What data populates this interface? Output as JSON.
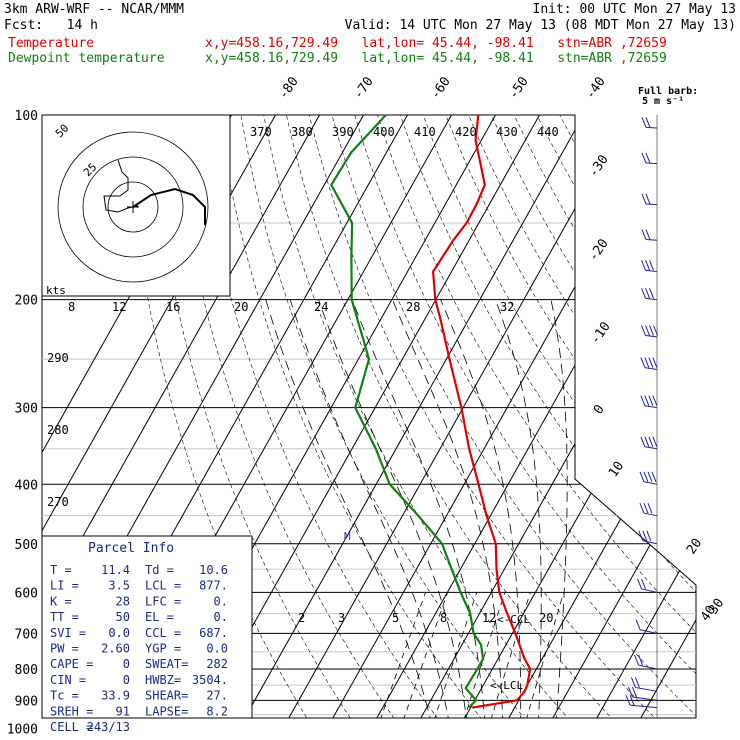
{
  "header": {
    "model": "3km ARW-WRF -- NCAR/MMM",
    "init": "Init: 00 UTC Mon 27 May 13",
    "fcst_label": "Fcst:",
    "fcst_value": "14 h",
    "valid": "Valid: 14 UTC Mon 27 May 13 (08 MDT Mon 27 May 13)",
    "temp_label": "Temperature",
    "temp_info": "x,y=458.16,729.49   lat,lon= 45.44, -98.41   stn=ABR ,72659",
    "dew_label": "Dewpoint temperature",
    "dew_info": "x,y=458.16,729.49   lat,lon= 45.44, -98.41   stn=ABR ,72659"
  },
  "colors": {
    "temperature": "#e00000",
    "dewpoint": "#108010",
    "grid": "#000000",
    "hodograph": "#000000"
  },
  "barb_key": {
    "line1": "Full barb:",
    "line2": "5 m s⁻¹"
  },
  "hodograph": {
    "label_kts": "kts",
    "ring_labels": [
      "25",
      "50"
    ],
    "points": [
      [
        0,
        0
      ],
      [
        3,
        -2
      ],
      [
        7,
        -3
      ],
      [
        10,
        -2
      ],
      [
        12,
        0
      ],
      [
        12,
        3
      ]
    ]
  },
  "parcel_info": {
    "title": "Parcel Info",
    "rows": [
      [
        "T  =",
        "11.4",
        "Td =",
        "10.6"
      ],
      [
        "LI =",
        "3.5",
        "LCL =",
        "877."
      ],
      [
        "K  =",
        "28",
        "LFC =",
        "0."
      ],
      [
        "TT =",
        "50",
        "EL  =",
        "0."
      ],
      [
        "SVI =",
        "0.0",
        "CCL =",
        "687."
      ],
      [
        "PW =",
        "2.60",
        "YGP =",
        "0.0"
      ],
      [
        "CAPE =",
        "0",
        "SWEAT=",
        "282"
      ],
      [
        "CIN =",
        "0",
        "HWBZ=",
        "3504."
      ],
      [
        "Tc =",
        "33.9",
        "SHEAR=",
        "27."
      ],
      [
        "SREH =",
        "91",
        "LAPSE=",
        "8.2"
      ],
      [
        "CELL =",
        "243/13",
        "",
        ""
      ]
    ]
  },
  "chart_data": {
    "type": "skew-t",
    "pressure_ticks": [
      "100",
      "200",
      "300",
      "400",
      "500",
      "600",
      "700",
      "800",
      "900",
      "1000"
    ],
    "isotherm_labels": [
      "-80",
      "-70",
      "-60",
      "-50",
      "-40",
      "-30",
      "-20",
      "-10",
      "0",
      "10",
      "20",
      "30",
      "40"
    ],
    "theta_labels_top": [
      "370",
      "380",
      "390",
      "400",
      "410",
      "420",
      "430",
      "440"
    ],
    "theta_labels_left": [
      "290",
      "280",
      "270"
    ],
    "theta_e_labels": [
      "8",
      "12",
      "16",
      "20",
      "24",
      "28",
      "32"
    ],
    "mixing_ratio_labels": [
      "2",
      "3",
      "5",
      "8",
      "12",
      "20"
    ],
    "annotations": [
      "CCL",
      "LCL",
      "M"
    ],
    "series": [
      {
        "name": "Temperature",
        "points": [
          [
            925,
            10.4
          ],
          [
            900,
            19.6
          ],
          [
            870,
            20.2
          ],
          [
            850,
            20.0
          ],
          [
            800,
            18.6
          ],
          [
            770,
            16.0
          ],
          [
            700,
            10.7
          ],
          [
            650,
            6.3
          ],
          [
            600,
            1.8
          ],
          [
            550,
            -1.8
          ],
          [
            500,
            -5.2
          ],
          [
            450,
            -10.9
          ],
          [
            400,
            -16.7
          ],
          [
            350,
            -23.4
          ],
          [
            300,
            -30.4
          ],
          [
            250,
            -39.3
          ],
          [
            215,
            -46.5
          ],
          [
            200,
            -50.1
          ],
          [
            180,
            -54.2
          ],
          [
            160,
            -53.6
          ],
          [
            150,
            -52.8
          ],
          [
            140,
            -52.9
          ],
          [
            130,
            -53.5
          ],
          [
            120,
            -57.2
          ],
          [
            110,
            -61.3
          ],
          [
            100,
            -63.9
          ]
        ]
      },
      {
        "name": "Dewpoint temperature",
        "points": [
          [
            925,
            9.6
          ],
          [
            900,
            10.3
          ],
          [
            860,
            6.4
          ],
          [
            800,
            6.6
          ],
          [
            770,
            6.6
          ],
          [
            730,
            4.3
          ],
          [
            700,
            1.2
          ],
          [
            650,
            -2.1
          ],
          [
            600,
            -7.0
          ],
          [
            550,
            -12.0
          ],
          [
            500,
            -17.4
          ],
          [
            450,
            -26.4
          ],
          [
            400,
            -36.9
          ],
          [
            350,
            -44.6
          ],
          [
            300,
            -54.5
          ],
          [
            250,
            -57.6
          ],
          [
            200,
            -69.1
          ],
          [
            170,
            -74.7
          ],
          [
            150,
            -78.8
          ],
          [
            130,
            -88.4
          ],
          [
            115,
            -88.0
          ],
          [
            100,
            -84.9
          ]
        ]
      }
    ],
    "wind_barbs_ms": [
      {
        "p": 925,
        "spd": 8,
        "dir": 130
      },
      {
        "p": 900,
        "spd": 10,
        "dir": 150
      },
      {
        "p": 870,
        "spd": 10,
        "dir": 170
      },
      {
        "p": 800,
        "spd": 8,
        "dir": 190
      },
      {
        "p": 700,
        "spd": 5,
        "dir": 200
      },
      {
        "p": 600,
        "spd": 10,
        "dir": 210
      },
      {
        "p": 500,
        "spd": 13,
        "dir": 220
      },
      {
        "p": 450,
        "spd": 15,
        "dir": 230
      },
      {
        "p": 400,
        "spd": 18,
        "dir": 230
      },
      {
        "p": 350,
        "spd": 20,
        "dir": 240
      },
      {
        "p": 300,
        "spd": 22,
        "dir": 240
      },
      {
        "p": 260,
        "spd": 20,
        "dir": 240
      },
      {
        "p": 230,
        "spd": 18,
        "dir": 250
      },
      {
        "p": 200,
        "spd": 15,
        "dir": 250
      },
      {
        "p": 180,
        "spd": 13,
        "dir": 250
      },
      {
        "p": 160,
        "spd": 12,
        "dir": 260
      },
      {
        "p": 140,
        "spd": 12,
        "dir": 260
      },
      {
        "p": 120,
        "spd": 10,
        "dir": 260
      },
      {
        "p": 105,
        "spd": 10,
        "dir": 260
      }
    ]
  }
}
